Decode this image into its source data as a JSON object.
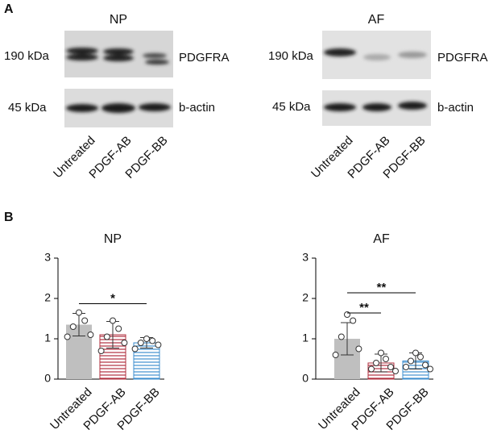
{
  "panel_a": {
    "label": "A",
    "blots": [
      {
        "title": "NP",
        "lanes": [
          "Untreated",
          "PDGF-AB",
          "PDGF-BB"
        ],
        "markers": [
          {
            "size": "190 kDa",
            "protein": "PDGFRA"
          },
          {
            "size": "45 kDa",
            "protein": "b-actin"
          }
        ]
      },
      {
        "title": "AF",
        "lanes": [
          "Untreated",
          "PDGF-AB",
          "PDGF-BB"
        ],
        "markers": [
          {
            "size": "190 kDa",
            "protein": "PDGFRA"
          },
          {
            "size": "45 kDa",
            "protein": "b-actin"
          }
        ]
      }
    ]
  },
  "panel_b": {
    "label": "B"
  },
  "chart_data": [
    {
      "type": "bar",
      "title": "NP",
      "categories": [
        "Untreated",
        "PDGF-AB",
        "PDGF-BB"
      ],
      "values": [
        1.35,
        1.1,
        0.9
      ],
      "errors": [
        0.28,
        0.33,
        0.13
      ],
      "points": [
        [
          1.65,
          1.45,
          1.3,
          1.1,
          1.05
        ],
        [
          1.45,
          1.25,
          1.05,
          0.9,
          0.7
        ],
        [
          1.0,
          0.95,
          0.9,
          0.85,
          0.75
        ]
      ],
      "colors": [
        "#bfbfbf",
        "#b0303f",
        "#3f8fcf"
      ],
      "hatch": [
        false,
        true,
        true
      ],
      "ylim": [
        0,
        3
      ],
      "yticks": [
        0,
        1,
        2,
        3
      ],
      "significance": [
        {
          "from": 0,
          "to": 2,
          "label": "*"
        }
      ]
    },
    {
      "type": "bar",
      "title": "AF",
      "categories": [
        "Untreated",
        "PDGF-AB",
        "PDGF-BB"
      ],
      "values": [
        1.0,
        0.4,
        0.45
      ],
      "errors": [
        0.4,
        0.22,
        0.2
      ],
      "points": [
        [
          1.6,
          1.45,
          1.05,
          0.75,
          0.6
        ],
        [
          0.65,
          0.5,
          0.4,
          0.3,
          0.25,
          0.2
        ],
        [
          0.65,
          0.55,
          0.45,
          0.35,
          0.3,
          0.25
        ]
      ],
      "colors": [
        "#bfbfbf",
        "#b0303f",
        "#3f8fcf"
      ],
      "hatch": [
        false,
        true,
        true
      ],
      "ylim": [
        0,
        3
      ],
      "yticks": [
        0,
        1,
        2,
        3
      ],
      "significance": [
        {
          "from": 0,
          "to": 1,
          "label": "**"
        },
        {
          "from": 0,
          "to": 2,
          "label": "**"
        }
      ]
    }
  ]
}
